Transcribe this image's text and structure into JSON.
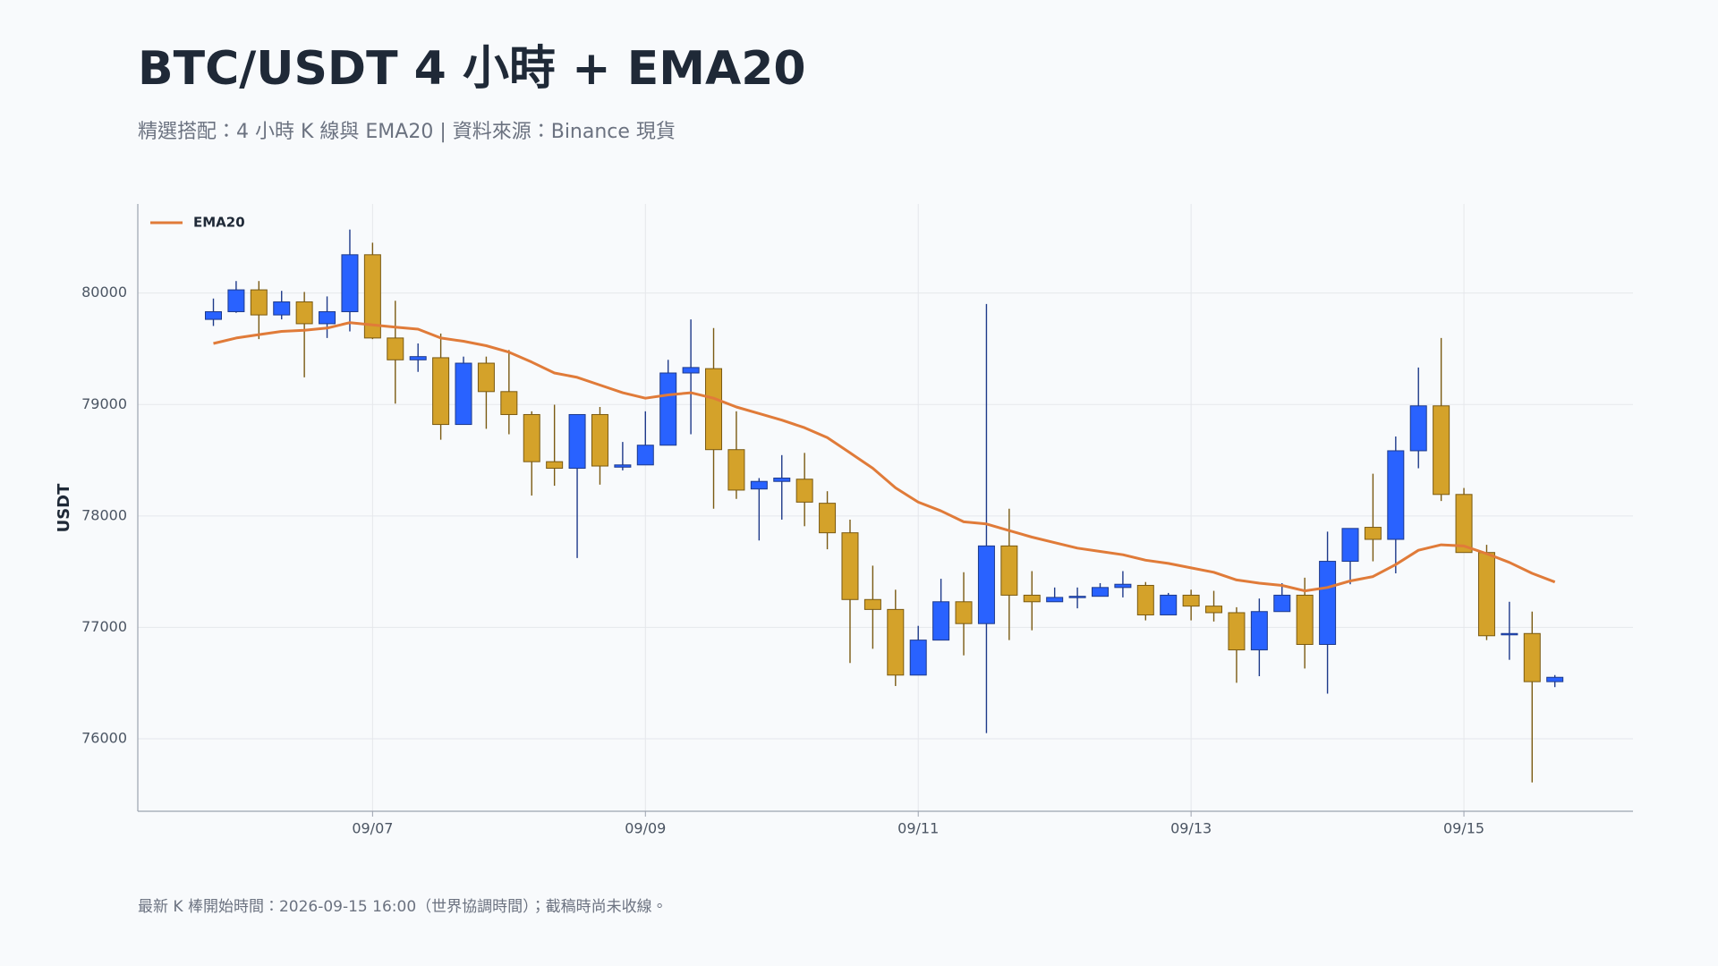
{
  "chart_data": {
    "type": "candlestick",
    "title": "BTC/USDT 4 小時 + EMA20",
    "subtitle": "精選搭配：4 小時 K 線與 EMA20 | 資料來源：Binance 現貨",
    "y_label": "USDT",
    "footnote": "最新 K 棒開始時間：2026-09-15 16:00（世界協調時間）；截稿時尚未收線。",
    "categories": [
      null,
      null,
      null,
      null,
      null,
      null,
      null,
      "09/07",
      null,
      null,
      null,
      null,
      null,
      null,
      null,
      null,
      null,
      null,
      null,
      "09/09",
      null,
      null,
      null,
      null,
      null,
      null,
      null,
      null,
      null,
      null,
      null,
      "09/11",
      null,
      null,
      null,
      null,
      null,
      null,
      null,
      null,
      null,
      null,
      null,
      "09/13",
      null,
      null,
      null,
      null,
      null,
      null,
      null,
      null,
      null,
      null,
      null,
      "09/15",
      null,
      null,
      null,
      null
    ],
    "open": [
      79764,
      79833,
      80029,
      79804,
      79921,
      79725,
      79833,
      80344,
      79597,
      79401,
      79420,
      78821,
      79371,
      79116,
      78910,
      78487,
      78428,
      78910,
      78438,
      78458,
      78635,
      79283,
      79322,
      78595,
      78242,
      78310,
      78330,
      78114,
      77849,
      77250,
      77161,
      76572,
      76886,
      77230,
      77034,
      77731,
      77289,
      77230,
      77269,
      77279,
      77358,
      77377,
      77112,
      77289,
      77191,
      77132,
      76798,
      77142,
      77289,
      76847,
      77593,
      77898,
      77790,
      78585,
      78988,
      78193,
      77672,
      76935,
      76945,
      76513
    ],
    "high": [
      79951,
      80108,
      80108,
      80020,
      80010,
      79970,
      80570,
      80452,
      79931,
      79548,
      79637,
      79430,
      79430,
      79489,
      78939,
      78998,
      78910,
      78978,
      78664,
      78939,
      79401,
      79764,
      79686,
      78939,
      78340,
      78546,
      78566,
      78222,
      77967,
      77554,
      77338,
      77014,
      77436,
      77495,
      79902,
      78065,
      77505,
      77358,
      77358,
      77397,
      77505,
      77407,
      77309,
      77338,
      77328,
      77181,
      77259,
      77397,
      77446,
      77859,
      77888,
      78379,
      78713,
      79332,
      79597,
      78251,
      77741,
      77230,
      77142,
      76572
    ],
    "low": [
      79705,
      79823,
      79587,
      79764,
      79244,
      79597,
      79656,
      79587,
      79008,
      79293,
      78684,
      78821,
      78782,
      78733,
      78183,
      78271,
      77623,
      78281,
      78409,
      78458,
      78635,
      78733,
      78065,
      78153,
      77780,
      77967,
      77908,
      77701,
      76680,
      76808,
      76474,
      76572,
      76886,
      76749,
      76051,
      76886,
      76974,
      77230,
      77171,
      77279,
      77269,
      77063,
      77112,
      77063,
      77053,
      76503,
      76562,
      77142,
      76631,
      76405,
      77387,
      77593,
      77485,
      78428,
      78134,
      77672,
      76886,
      76709,
      75609,
      76464
    ],
    "close": [
      79833,
      80029,
      79804,
      79921,
      79725,
      79833,
      80344,
      79597,
      79401,
      79430,
      78821,
      79371,
      79116,
      78910,
      78487,
      78428,
      78910,
      78448,
      78458,
      78635,
      79283,
      79332,
      78595,
      78232,
      78310,
      78340,
      78124,
      77849,
      77250,
      77161,
      76572,
      76886,
      77230,
      77034,
      77731,
      77289,
      77230,
      77269,
      77279,
      77358,
      77387,
      77112,
      77289,
      77191,
      77132,
      76798,
      77142,
      77289,
      76847,
      77593,
      77888,
      77790,
      78585,
      78988,
      78193,
      77672,
      76925,
      76945,
      76513,
      76552
    ],
    "up_color": "#2962ff",
    "down_color": "#d4a22a",
    "series": [
      {
        "name": "EMA20",
        "color": "#e07b39",
        "values": [
          79548,
          79597,
          79627,
          79656,
          79666,
          79686,
          79735,
          79715,
          79695,
          79676,
          79597,
          79568,
          79528,
          79470,
          79381,
          79283,
          79244,
          79175,
          79106,
          79057,
          79086,
          79106,
          79057,
          78978,
          78919,
          78860,
          78792,
          78703,
          78566,
          78428,
          78252,
          78124,
          78045,
          77947,
          77928,
          77869,
          77810,
          77760,
          77711,
          77682,
          77652,
          77603,
          77574,
          77534,
          77495,
          77426,
          77397,
          77377,
          77328,
          77358,
          77417,
          77456,
          77564,
          77692,
          77741,
          77731,
          77662,
          77583,
          77485,
          77407
        ]
      }
    ],
    "ylim": [
      75350,
      80800
    ],
    "yticks": [
      76000,
      77000,
      78000,
      79000,
      80000
    ],
    "grid": true,
    "legend": "upper left"
  }
}
